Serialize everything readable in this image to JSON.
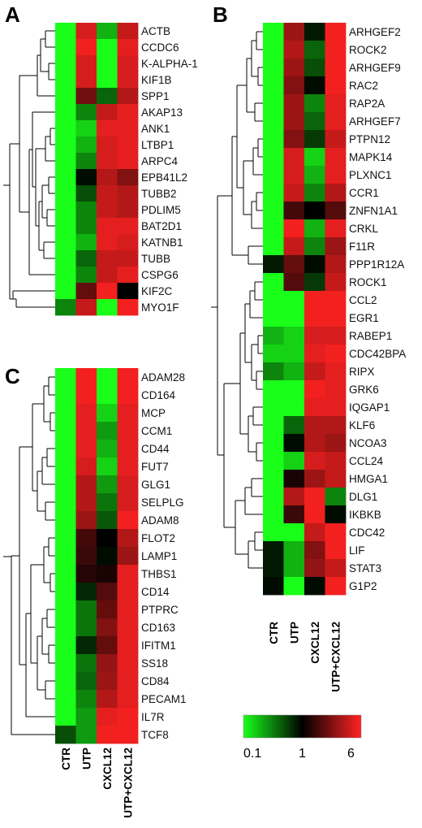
{
  "figure": {
    "conditions": [
      "CTR",
      "UTP",
      "CXCL12",
      "UTP+CXCL12"
    ]
  },
  "legend": {
    "ticks": [
      "0.1",
      "1",
      "6"
    ],
    "gradient_colors": [
      "#19ff19",
      "#000000",
      "#ff2222"
    ]
  },
  "chart_data": [
    {
      "type": "heatmap",
      "panel_label": "A",
      "columns": [
        "CTR",
        "UTP",
        "CXCL12",
        "UTP+CXCL12"
      ],
      "rows": [
        "ACTB",
        "CCDC6",
        "K-ALPHA-1",
        "KIF1B",
        "SPP1",
        "AKAP13",
        "ANK1",
        "LTBP1",
        "ARPC4",
        "EPB41L2",
        "TUBB2",
        "PDLIM5",
        "BAT2D1",
        "KATNB1",
        "TUBB",
        "CSPG6",
        "KIF2C",
        "MYO1F"
      ],
      "values": [
        [
          0.1,
          4.5,
          0.2,
          4.0
        ],
        [
          0.1,
          5.5,
          0.1,
          5.0
        ],
        [
          0.1,
          4.5,
          0.1,
          4.5
        ],
        [
          0.1,
          4.5,
          0.1,
          4.5
        ],
        [
          0.1,
          2.2,
          0.4,
          3.5
        ],
        [
          0.1,
          0.3,
          4.0,
          5.0
        ],
        [
          0.1,
          0.15,
          5.0,
          5.0
        ],
        [
          0.1,
          0.2,
          4.5,
          5.0
        ],
        [
          0.1,
          0.3,
          4.5,
          5.0
        ],
        [
          0.1,
          0.9,
          3.5,
          2.5
        ],
        [
          0.1,
          0.5,
          4.0,
          3.5
        ],
        [
          0.1,
          0.3,
          4.0,
          3.5
        ],
        [
          0.1,
          0.3,
          5.0,
          5.0
        ],
        [
          0.1,
          0.2,
          5.0,
          4.5
        ],
        [
          0.1,
          0.4,
          4.0,
          4.0
        ],
        [
          0.1,
          0.3,
          4.0,
          5.0
        ],
        [
          0.1,
          2.0,
          5.5,
          1.0
        ],
        [
          0.3,
          4.0,
          0.1,
          5.5
        ]
      ],
      "color_scale": {
        "min": 0.1,
        "mid": 1,
        "max": 6,
        "low_color": "#19ff19",
        "mid_color": "#000000",
        "high_color": "#ff2222"
      }
    },
    {
      "type": "heatmap",
      "panel_label": "B",
      "columns": [
        "CTR",
        "UTP",
        "CXCL12",
        "UTP+CXCL12"
      ],
      "rows": [
        "ARHGEF2",
        "ROCK2",
        "ARHGEF9",
        "RAC2",
        "RAP2A",
        "ARHGEF7",
        "PTPN12",
        "MAPK14",
        "PLXNC1",
        "CCR1",
        "ZNFN1A1",
        "CRKL",
        "F11R",
        "PPP1R12A",
        "ROCK1",
        "CCL2",
        "EGR1",
        "RABEP1",
        "CDC42BPA",
        "RIPX",
        "GRK6",
        "IQGAP1",
        "KLF6",
        "NCOA3",
        "CCL24",
        "HMGA1",
        "DLG1",
        "IKBKB",
        "CDC42",
        "LIF",
        "STAT3",
        "G1P2"
      ],
      "values": [
        [
          0.1,
          3.0,
          0.8,
          5.5
        ],
        [
          0.1,
          3.5,
          0.4,
          5.5
        ],
        [
          0.1,
          3.0,
          0.5,
          5.5
        ],
        [
          0.1,
          2.5,
          0.9,
          5.5
        ],
        [
          0.1,
          3.0,
          0.3,
          5.0
        ],
        [
          0.1,
          3.0,
          0.4,
          5.0
        ],
        [
          0.1,
          2.5,
          0.6,
          4.0
        ],
        [
          0.1,
          4.5,
          0.15,
          5.0
        ],
        [
          0.1,
          4.5,
          0.2,
          5.0
        ],
        [
          0.1,
          4.0,
          0.3,
          3.5
        ],
        [
          0.1,
          1.6,
          1.0,
          1.8
        ],
        [
          0.1,
          5.5,
          0.2,
          5.0
        ],
        [
          0.1,
          4.0,
          0.3,
          3.0
        ],
        [
          0.8,
          2.0,
          0.9,
          3.5
        ],
        [
          0.1,
          1.8,
          0.6,
          4.0
        ],
        [
          0.1,
          0.1,
          5.5,
          5.5
        ],
        [
          0.1,
          0.1,
          5.5,
          5.5
        ],
        [
          0.2,
          0.15,
          4.5,
          4.5
        ],
        [
          0.15,
          0.15,
          5.0,
          5.5
        ],
        [
          0.3,
          0.2,
          4.0,
          5.0
        ],
        [
          0.1,
          0.1,
          5.5,
          5.0
        ],
        [
          0.1,
          0.1,
          5.0,
          5.0
        ],
        [
          0.1,
          0.4,
          3.5,
          3.5
        ],
        [
          0.1,
          0.9,
          3.5,
          3.0
        ],
        [
          0.1,
          0.15,
          4.5,
          4.0
        ],
        [
          0.1,
          1.2,
          3.0,
          4.0
        ],
        [
          0.1,
          3.5,
          5.5,
          0.3
        ],
        [
          0.1,
          1.5,
          5.5,
          0.9
        ],
        [
          0.1,
          0.1,
          4.0,
          5.5
        ],
        [
          0.8,
          0.2,
          2.5,
          5.5
        ],
        [
          0.8,
          0.2,
          2.8,
          4.0
        ],
        [
          0.9,
          0.1,
          0.9,
          5.5
        ]
      ],
      "color_scale": {
        "min": 0.1,
        "mid": 1,
        "max": 6,
        "low_color": "#19ff19",
        "mid_color": "#000000",
        "high_color": "#ff2222"
      }
    },
    {
      "type": "heatmap",
      "panel_label": "C",
      "columns": [
        "CTR",
        "UTP",
        "CXCL12",
        "UTP+CXCL12"
      ],
      "rows": [
        "ADAM28",
        "CD164",
        "MCP",
        "CCM1",
        "CD44",
        "FUT7",
        "GLG1",
        "SELPLG",
        "ADAM8",
        "FLOT2",
        "LAMP1",
        "THBS1",
        "CD14",
        "PTPRC",
        "CD163",
        "IFITM1",
        "SS18",
        "CD84",
        "PECAM1",
        "IL7R",
        "TCF8"
      ],
      "values": [
        [
          0.1,
          5.5,
          0.1,
          5.5
        ],
        [
          0.1,
          5.5,
          0.1,
          5.5
        ],
        [
          0.1,
          5.0,
          0.15,
          5.0
        ],
        [
          0.1,
          5.0,
          0.25,
          5.0
        ],
        [
          0.1,
          5.0,
          0.2,
          5.0
        ],
        [
          0.1,
          4.5,
          0.15,
          5.0
        ],
        [
          0.1,
          3.5,
          0.25,
          4.5
        ],
        [
          0.1,
          3.5,
          0.35,
          4.5
        ],
        [
          0.1,
          3.0,
          0.45,
          5.5
        ],
        [
          0.1,
          1.6,
          1.0,
          3.5
        ],
        [
          0.1,
          1.5,
          0.9,
          3.0
        ],
        [
          0.1,
          1.3,
          1.2,
          5.0
        ],
        [
          0.1,
          0.7,
          1.8,
          5.0
        ],
        [
          0.1,
          0.35,
          2.0,
          5.0
        ],
        [
          0.1,
          0.35,
          2.5,
          5.0
        ],
        [
          0.1,
          0.7,
          2.0,
          5.0
        ],
        [
          0.1,
          0.35,
          2.8,
          5.0
        ],
        [
          0.1,
          0.4,
          3.0,
          5.0
        ],
        [
          0.1,
          0.3,
          3.5,
          5.0
        ],
        [
          0.1,
          0.25,
          5.0,
          5.5
        ],
        [
          0.5,
          0.25,
          5.5,
          5.5
        ]
      ],
      "color_scale": {
        "min": 0.1,
        "mid": 1,
        "max": 6,
        "low_color": "#19ff19",
        "mid_color": "#000000",
        "high_color": "#ff2222"
      }
    }
  ]
}
